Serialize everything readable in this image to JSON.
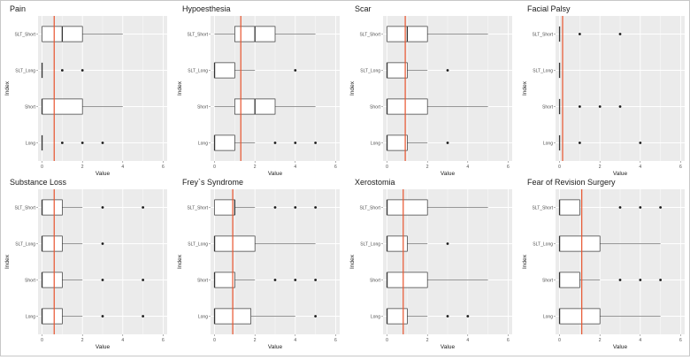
{
  "figure": {
    "colors": {
      "panel_bg": "#ebebeb",
      "grid_major": "#ffffff",
      "box_fill": "#ffffff",
      "box_line": "#333333",
      "ref_line": "#e8542e",
      "text": "#1a1a1a",
      "tick_text": "#4d4d4d"
    }
  },
  "chart_data": [
    {
      "type": "boxplot",
      "title": "Pain",
      "xlabel": "Value",
      "ylabel": "Index",
      "xlim": [
        -0.2,
        6.2
      ],
      "xticks": [
        0,
        2,
        4,
        6
      ],
      "categories": [
        "SLT_Short",
        "SLT_Long",
        "Short",
        "Long"
      ],
      "reference_line": 0.6,
      "boxes": [
        {
          "min": 0,
          "q1": 0,
          "median": 1,
          "q3": 2,
          "max": 4,
          "outliers": []
        },
        {
          "min": 0,
          "q1": 0,
          "median": 0,
          "q3": 0,
          "max": 0,
          "outliers": [
            1,
            2
          ]
        },
        {
          "min": 0,
          "q1": 0,
          "median": 0,
          "q3": 2,
          "max": 4,
          "outliers": []
        },
        {
          "min": 0,
          "q1": 0,
          "median": 0,
          "q3": 0,
          "max": 0,
          "outliers": [
            1,
            2,
            3
          ]
        }
      ]
    },
    {
      "type": "boxplot",
      "title": "Hypoesthesia",
      "xlabel": "Value",
      "ylabel": "Index",
      "xlim": [
        -0.2,
        6.2
      ],
      "xticks": [
        0,
        2,
        4,
        6
      ],
      "categories": [
        "SLT_Short",
        "SLT_Long",
        "Short",
        "Long"
      ],
      "reference_line": 1.3,
      "boxes": [
        {
          "min": 0,
          "q1": 1,
          "median": 2,
          "q3": 3,
          "max": 5,
          "outliers": []
        },
        {
          "min": 0,
          "q1": 0,
          "median": 0,
          "q3": 1,
          "max": 2,
          "outliers": [
            4
          ]
        },
        {
          "min": 0,
          "q1": 1,
          "median": 2,
          "q3": 3,
          "max": 5,
          "outliers": []
        },
        {
          "min": 0,
          "q1": 0,
          "median": 0,
          "q3": 1,
          "max": 2,
          "outliers": [
            3,
            4,
            5
          ]
        }
      ]
    },
    {
      "type": "boxplot",
      "title": "Scar",
      "xlabel": "Value",
      "ylabel": "Index",
      "xlim": [
        -0.2,
        6.2
      ],
      "xticks": [
        0,
        2,
        4,
        6
      ],
      "categories": [
        "SLT_Short",
        "SLT_Long",
        "Short",
        "Long"
      ],
      "reference_line": 0.9,
      "boxes": [
        {
          "min": 0,
          "q1": 0,
          "median": 1,
          "q3": 2,
          "max": 5,
          "outliers": []
        },
        {
          "min": 0,
          "q1": 0,
          "median": 0,
          "q3": 1,
          "max": 2,
          "outliers": [
            3
          ]
        },
        {
          "min": 0,
          "q1": 0,
          "median": 0,
          "q3": 2,
          "max": 5,
          "outliers": []
        },
        {
          "min": 0,
          "q1": 0,
          "median": 0,
          "q3": 1,
          "max": 2,
          "outliers": [
            3
          ]
        }
      ]
    },
    {
      "type": "boxplot",
      "title": "Facial Palsy",
      "xlabel": "Value",
      "ylabel": "Index",
      "xlim": [
        -0.2,
        6.2
      ],
      "xticks": [
        0,
        2,
        4,
        6
      ],
      "categories": [
        "SLT_Short",
        "SLT_Long",
        "Short",
        "Long"
      ],
      "reference_line": 0.15,
      "boxes": [
        {
          "min": 0,
          "q1": 0,
          "median": 0,
          "q3": 0,
          "max": 0,
          "outliers": [
            1,
            3
          ]
        },
        {
          "min": 0,
          "q1": 0,
          "median": 0,
          "q3": 0,
          "max": 0,
          "outliers": []
        },
        {
          "min": 0,
          "q1": 0,
          "median": 0,
          "q3": 0,
          "max": 0,
          "outliers": [
            1,
            2,
            3
          ]
        },
        {
          "min": 0,
          "q1": 0,
          "median": 0,
          "q3": 0,
          "max": 0,
          "outliers": [
            1,
            4
          ]
        }
      ]
    },
    {
      "type": "boxplot",
      "title": "Substance Loss",
      "xlabel": "Value",
      "ylabel": "Index",
      "xlim": [
        -0.2,
        6.2
      ],
      "xticks": [
        0,
        2,
        4,
        6
      ],
      "categories": [
        "SLT_Short",
        "SLT_Long",
        "Short",
        "Long"
      ],
      "reference_line": 0.6,
      "boxes": [
        {
          "min": 0,
          "q1": 0,
          "median": 0,
          "q3": 1,
          "max": 2,
          "outliers": [
            3,
            5
          ]
        },
        {
          "min": 0,
          "q1": 0,
          "median": 0,
          "q3": 1,
          "max": 2,
          "outliers": [
            3
          ]
        },
        {
          "min": 0,
          "q1": 0,
          "median": 0,
          "q3": 1,
          "max": 2,
          "outliers": [
            3,
            5
          ]
        },
        {
          "min": 0,
          "q1": 0,
          "median": 0,
          "q3": 1,
          "max": 2,
          "outliers": [
            3,
            5
          ]
        }
      ]
    },
    {
      "type": "boxplot",
      "title": "Frey`s Syndrome",
      "xlabel": "Value",
      "ylabel": "Index",
      "xlim": [
        -0.2,
        6.2
      ],
      "xticks": [
        0,
        2,
        4,
        6
      ],
      "categories": [
        "SLT_Short",
        "SLT_Long",
        "Short",
        "Long"
      ],
      "reference_line": 0.9,
      "boxes": [
        {
          "min": 0,
          "q1": 0,
          "median": 1,
          "q3": 1,
          "max": 2,
          "outliers": [
            3,
            4,
            5
          ]
        },
        {
          "min": 0,
          "q1": 0,
          "median": 0,
          "q3": 2,
          "max": 5,
          "outliers": []
        },
        {
          "min": 0,
          "q1": 0,
          "median": 0,
          "q3": 1,
          "max": 2,
          "outliers": [
            3,
            4,
            5
          ]
        },
        {
          "min": 0,
          "q1": 0,
          "median": 0,
          "q3": 1.8,
          "max": 4,
          "outliers": [
            5
          ]
        }
      ]
    },
    {
      "type": "boxplot",
      "title": "Xerostomia",
      "xlabel": "Value",
      "ylabel": "Index",
      "xlim": [
        -0.2,
        6.2
      ],
      "xticks": [
        0,
        2,
        4,
        6
      ],
      "categories": [
        "SLT_Short",
        "SLT_Long",
        "Short",
        "Long"
      ],
      "reference_line": 0.8,
      "boxes": [
        {
          "min": 0,
          "q1": 0,
          "median": 0,
          "q3": 2,
          "max": 5,
          "outliers": []
        },
        {
          "min": 0,
          "q1": 0,
          "median": 0,
          "q3": 1,
          "max": 2,
          "outliers": [
            3
          ]
        },
        {
          "min": 0,
          "q1": 0,
          "median": 0,
          "q3": 2,
          "max": 5,
          "outliers": []
        },
        {
          "min": 0,
          "q1": 0,
          "median": 0,
          "q3": 1,
          "max": 2,
          "outliers": [
            3,
            4
          ]
        }
      ]
    },
    {
      "type": "boxplot",
      "title": "Fear of Revision Surgery",
      "xlabel": "Value",
      "ylabel": "Index",
      "xlim": [
        -0.2,
        6.2
      ],
      "xticks": [
        0,
        2,
        4,
        6
      ],
      "categories": [
        "SLT_Short",
        "SLT_Long",
        "Short",
        "Long"
      ],
      "reference_line": 1.1,
      "boxes": [
        {
          "min": 0,
          "q1": 0,
          "median": 0,
          "q3": 1,
          "max": 1,
          "outliers": [
            3,
            4,
            5
          ]
        },
        {
          "min": 0,
          "q1": 0,
          "median": 0,
          "q3": 2,
          "max": 5,
          "outliers": []
        },
        {
          "min": 0,
          "q1": 0,
          "median": 0,
          "q3": 1,
          "max": 2,
          "outliers": [
            3,
            4,
            5
          ]
        },
        {
          "min": 0,
          "q1": 0,
          "median": 0,
          "q3": 2,
          "max": 5,
          "outliers": []
        }
      ]
    }
  ]
}
